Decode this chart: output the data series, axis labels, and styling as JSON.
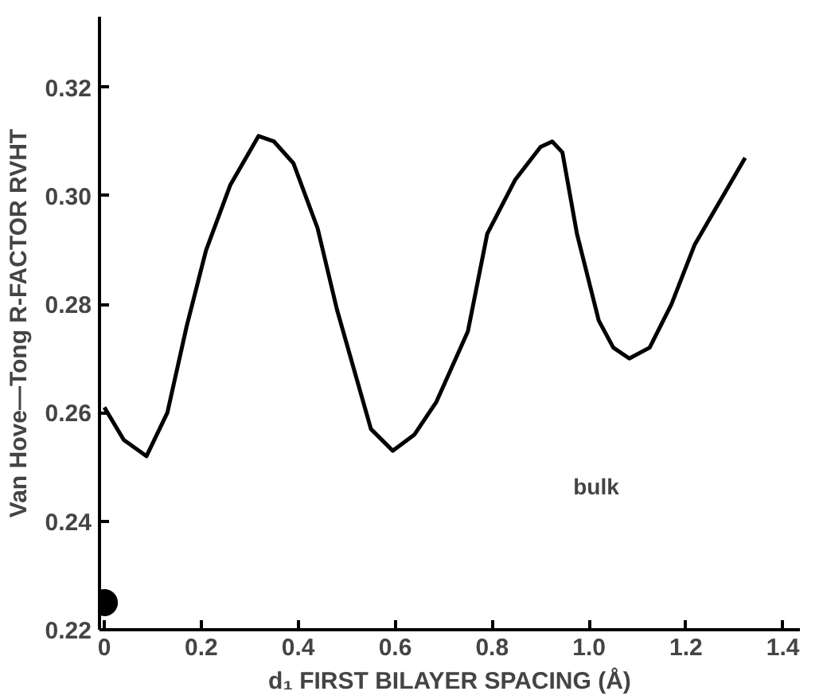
{
  "chart_data": {
    "type": "line",
    "xlabel": "d₁ FIRST BILAYER SPACING (Å)",
    "ylabel": "Van Hove—Tong R-FACTOR RVHT",
    "xlim": [
      -0.01,
      1.435
    ],
    "ylim": [
      0.22,
      0.333
    ],
    "xticks": [
      0,
      0.2,
      0.4,
      0.6,
      0.8,
      {
        "value": 1.0,
        "label": "1.0"
      },
      1.2,
      1.4
    ],
    "yticks": [
      0.22,
      0.24,
      0.26,
      0.28,
      {
        "value": 0.3,
        "label": "0.30"
      },
      0.32
    ],
    "grid": false,
    "series": [
      {
        "color": "#000000",
        "x": [
          0,
          0.04,
          0.087,
          0.13,
          0.17,
          0.21,
          0.26,
          0.318,
          0.35,
          0.39,
          0.44,
          0.48,
          0.55,
          0.595,
          0.64,
          0.685,
          0.75,
          0.79,
          0.848,
          0.9,
          0.924,
          0.945,
          0.975,
          1.02,
          1.05,
          1.083,
          1.125,
          1.17,
          1.218,
          1.27,
          1.322
        ],
        "values": [
          0.261,
          0.255,
          0.252,
          0.26,
          0.276,
          0.29,
          0.302,
          0.311,
          0.31,
          0.306,
          0.294,
          0.279,
          0.257,
          0.253,
          0.256,
          0.262,
          0.275,
          0.293,
          0.303,
          0.309,
          0.31,
          0.308,
          0.293,
          0.277,
          0.272,
          0.27,
          0.272,
          0.28,
          0.291,
          0.299,
          0.307
        ],
        "line_style": "solid"
      },
      {
        "type": "scatter",
        "color": "#000000",
        "x": [
          0
        ],
        "values": [
          0.225
        ],
        "marker": "circle"
      }
    ],
    "annotations": [
      "bulk"
    ]
  }
}
